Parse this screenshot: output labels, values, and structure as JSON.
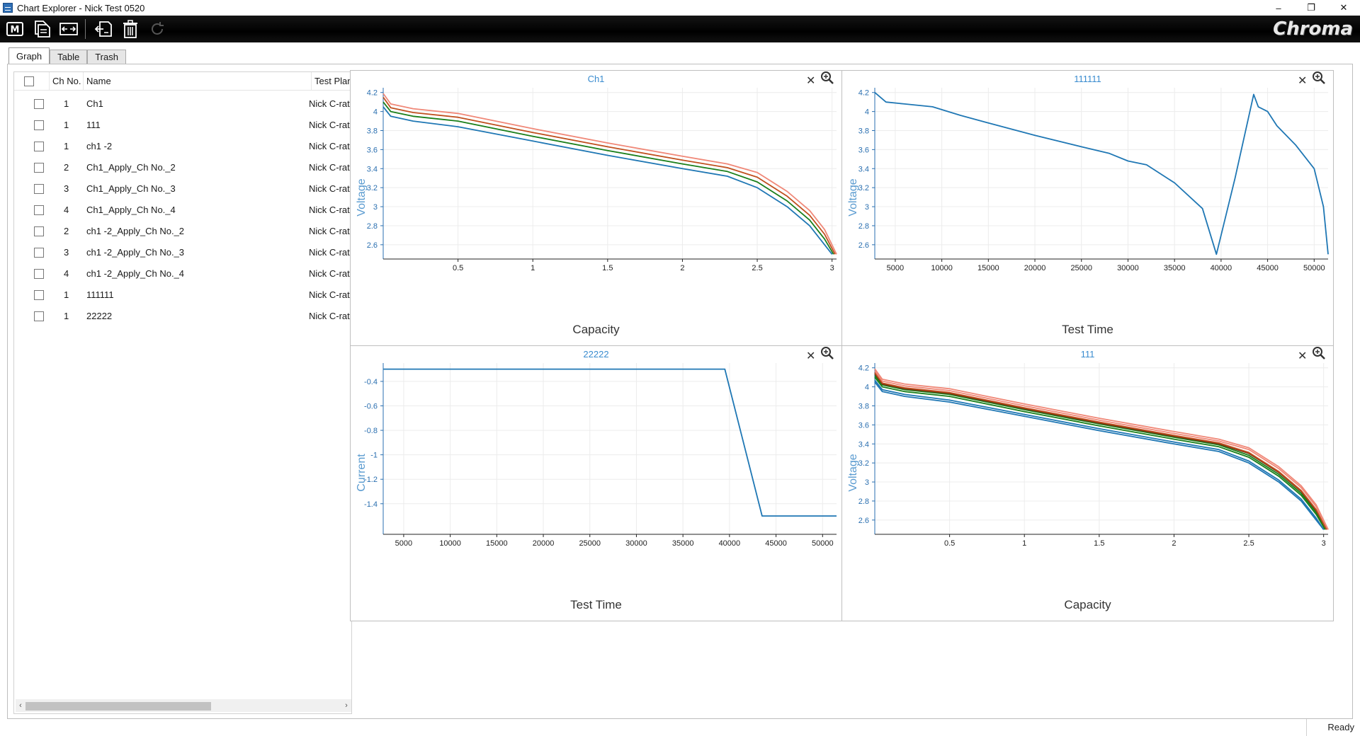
{
  "window": {
    "title": "Chart Explorer - Nick Test 0520",
    "min_glyph": "–",
    "max_glyph": "❐",
    "close_glyph": "✕"
  },
  "toolbar": {
    "buttons": [
      {
        "icon": "m-mode-icon"
      },
      {
        "icon": "copy-document-icon"
      },
      {
        "icon": "fit-view-icon"
      },
      {
        "icon": "export-icon"
      },
      {
        "icon": "trash-icon"
      },
      {
        "icon": "refresh-icon"
      }
    ],
    "brand": "Chroma"
  },
  "tabs": [
    {
      "label": "Graph",
      "active": true
    },
    {
      "label": "Table",
      "active": false
    },
    {
      "label": "Trash",
      "active": false
    }
  ],
  "list": {
    "headers": {
      "ch_no": "Ch No.",
      "name": "Name",
      "test_plan": "Test Plan"
    },
    "rows": [
      {
        "ch": "1",
        "name": "Ch1",
        "plan": "Nick C-rate"
      },
      {
        "ch": "1",
        "name": "111",
        "plan": "Nick C-rate"
      },
      {
        "ch": "1",
        "name": "ch1 -2",
        "plan": "Nick C-rate"
      },
      {
        "ch": "2",
        "name": "Ch1_Apply_Ch No._2",
        "plan": "Nick C-rate"
      },
      {
        "ch": "3",
        "name": "Ch1_Apply_Ch No._3",
        "plan": "Nick C-rate"
      },
      {
        "ch": "4",
        "name": "Ch1_Apply_Ch No._4",
        "plan": "Nick C-rate"
      },
      {
        "ch": "2",
        "name": "ch1 -2_Apply_Ch No._2",
        "plan": "Nick C-rate"
      },
      {
        "ch": "3",
        "name": "ch1 -2_Apply_Ch No._3",
        "plan": "Nick C-rate"
      },
      {
        "ch": "4",
        "name": "ch1 -2_Apply_Ch No._4",
        "plan": "Nick C-rate"
      },
      {
        "ch": "1",
        "name": "111111",
        "plan": "Nick C-rate"
      },
      {
        "ch": "1",
        "name": "22222",
        "plan": "Nick C-rate"
      }
    ]
  },
  "colors": {
    "accent": "#3a8ccf",
    "blue": "#1f77b4",
    "green": "#1a7f1a",
    "dark_orange": "#c0501f",
    "salmon": "#f08878"
  },
  "status": {
    "text": "Ready"
  },
  "chart_data": [
    {
      "type": "line",
      "title": "Ch1",
      "xlabel": "Capacity",
      "ylabel": "Voltage",
      "xlim": [
        0,
        3.03
      ],
      "ylim": [
        2.45,
        4.25
      ],
      "xticks": [
        "0.5",
        "1",
        "1.5",
        "2",
        "2.5",
        "3"
      ],
      "xtick_values": [
        0.5,
        1,
        1.5,
        2,
        2.5,
        3
      ],
      "yticks": [
        "4.2",
        "4",
        "3.8",
        "3.6",
        "3.4",
        "3.2",
        "3",
        "2.8",
        "2.6"
      ],
      "ytick_values": [
        4.2,
        4.0,
        3.8,
        3.6,
        3.4,
        3.2,
        3.0,
        2.8,
        2.6
      ],
      "series": [
        {
          "color": "#1f77b4",
          "points": [
            [
              0,
              4.05
            ],
            [
              0.05,
              3.95
            ],
            [
              0.2,
              3.9
            ],
            [
              0.5,
              3.84
            ],
            [
              1.0,
              3.69
            ],
            [
              1.5,
              3.54
            ],
            [
              2.0,
              3.4
            ],
            [
              2.3,
              3.32
            ],
            [
              2.5,
              3.2
            ],
            [
              2.7,
              3.0
            ],
            [
              2.85,
              2.8
            ],
            [
              2.95,
              2.6
            ],
            [
              3.0,
              2.5
            ]
          ]
        },
        {
          "color": "#1a7f1a",
          "points": [
            [
              0,
              4.1
            ],
            [
              0.05,
              4.0
            ],
            [
              0.2,
              3.95
            ],
            [
              0.5,
              3.9
            ],
            [
              1.0,
              3.74
            ],
            [
              1.5,
              3.59
            ],
            [
              2.0,
              3.45
            ],
            [
              2.3,
              3.37
            ],
            [
              2.5,
              3.26
            ],
            [
              2.7,
              3.06
            ],
            [
              2.85,
              2.86
            ],
            [
              2.95,
              2.66
            ],
            [
              3.01,
              2.5
            ]
          ]
        },
        {
          "color": "#c0501f",
          "points": [
            [
              0,
              4.15
            ],
            [
              0.05,
              4.04
            ],
            [
              0.2,
              3.99
            ],
            [
              0.5,
              3.94
            ],
            [
              1.0,
              3.78
            ],
            [
              1.5,
              3.63
            ],
            [
              2.0,
              3.49
            ],
            [
              2.3,
              3.41
            ],
            [
              2.5,
              3.31
            ],
            [
              2.7,
              3.11
            ],
            [
              2.85,
              2.91
            ],
            [
              2.95,
              2.71
            ],
            [
              3.02,
              2.5
            ]
          ]
        },
        {
          "color": "#f08878",
          "points": [
            [
              0,
              4.19
            ],
            [
              0.05,
              4.08
            ],
            [
              0.2,
              4.03
            ],
            [
              0.5,
              3.98
            ],
            [
              1.0,
              3.82
            ],
            [
              1.5,
              3.67
            ],
            [
              2.0,
              3.53
            ],
            [
              2.3,
              3.45
            ],
            [
              2.5,
              3.36
            ],
            [
              2.7,
              3.16
            ],
            [
              2.85,
              2.96
            ],
            [
              2.95,
              2.76
            ],
            [
              3.03,
              2.5
            ]
          ]
        }
      ]
    },
    {
      "type": "line",
      "title": "111111",
      "xlabel": "Test Time",
      "ylabel": "Voltage",
      "xlim": [
        2800,
        51500
      ],
      "ylim": [
        2.45,
        4.25
      ],
      "xticks": [
        "5000",
        "10000",
        "15000",
        "20000",
        "25000",
        "30000",
        "35000",
        "40000",
        "45000",
        "50000"
      ],
      "xtick_values": [
        5000,
        10000,
        15000,
        20000,
        25000,
        30000,
        35000,
        40000,
        45000,
        50000
      ],
      "yticks": [
        "4.2",
        "4",
        "3.8",
        "3.6",
        "3.4",
        "3.2",
        "3",
        "2.8",
        "2.6"
      ],
      "ytick_values": [
        4.2,
        4.0,
        3.8,
        3.6,
        3.4,
        3.2,
        3.0,
        2.8,
        2.6
      ],
      "series": [
        {
          "color": "#1f77b4",
          "points": [
            [
              2800,
              4.2
            ],
            [
              4000,
              4.1
            ],
            [
              6000,
              4.08
            ],
            [
              9000,
              4.05
            ],
            [
              12000,
              3.96
            ],
            [
              15000,
              3.88
            ],
            [
              20000,
              3.75
            ],
            [
              25000,
              3.63
            ],
            [
              28000,
              3.56
            ],
            [
              30000,
              3.48
            ],
            [
              32000,
              3.44
            ],
            [
              35000,
              3.25
            ],
            [
              38000,
              2.98
            ],
            [
              39500,
              2.5
            ],
            [
              41500,
              3.3
            ],
            [
              43500,
              4.18
            ],
            [
              44000,
              4.05
            ],
            [
              45000,
              4.0
            ],
            [
              46000,
              3.85
            ],
            [
              48000,
              3.65
            ],
            [
              50000,
              3.4
            ],
            [
              51000,
              3.0
            ],
            [
              51500,
              2.5
            ]
          ]
        }
      ]
    },
    {
      "type": "line",
      "title": "22222",
      "xlabel": "Test Time",
      "ylabel": "Current",
      "xlim": [
        2800,
        51500
      ],
      "ylim": [
        -1.65,
        -0.25
      ],
      "xticks": [
        "5000",
        "10000",
        "15000",
        "20000",
        "25000",
        "30000",
        "35000",
        "40000",
        "45000",
        "50000"
      ],
      "xtick_values": [
        5000,
        10000,
        15000,
        20000,
        25000,
        30000,
        35000,
        40000,
        45000,
        50000
      ],
      "yticks": [
        "-0.4",
        "-0.6",
        "-0.8",
        "-1",
        "-1.2",
        "-1.4"
      ],
      "ytick_values": [
        -0.4,
        -0.6,
        -0.8,
        -1.0,
        -1.2,
        -1.4
      ],
      "series": [
        {
          "color": "#1f77b4",
          "points": [
            [
              2800,
              -0.3
            ],
            [
              39500,
              -0.3
            ],
            [
              43500,
              -1.5
            ],
            [
              51500,
              -1.5
            ]
          ]
        }
      ]
    },
    {
      "type": "line",
      "title": "111",
      "xlabel": "Capacity",
      "ylabel": "Voltage",
      "xlim": [
        0,
        3.03
      ],
      "ylim": [
        2.45,
        4.25
      ],
      "xticks": [
        "0.5",
        "1",
        "1.5",
        "2",
        "2.5",
        "3"
      ],
      "xtick_values": [
        0.5,
        1,
        1.5,
        2,
        2.5,
        3
      ],
      "yticks": [
        "4.2",
        "4",
        "3.8",
        "3.6",
        "3.4",
        "3.2",
        "3",
        "2.8",
        "2.6"
      ],
      "ytick_values": [
        4.2,
        4.0,
        3.8,
        3.6,
        3.4,
        3.2,
        3.0,
        2.8,
        2.6
      ],
      "series": [
        {
          "color": "#1f77b4",
          "points": [
            [
              0,
              4.05
            ],
            [
              0.05,
              3.95
            ],
            [
              0.2,
              3.9
            ],
            [
              0.5,
              3.84
            ],
            [
              1.0,
              3.69
            ],
            [
              1.5,
              3.54
            ],
            [
              2.0,
              3.4
            ],
            [
              2.3,
              3.32
            ],
            [
              2.5,
              3.2
            ],
            [
              2.7,
              3.0
            ],
            [
              2.85,
              2.8
            ],
            [
              2.95,
              2.6
            ],
            [
              3.0,
              2.5
            ]
          ]
        },
        {
          "color": "#1f77b4",
          "points": [
            [
              0,
              4.07
            ],
            [
              0.05,
              3.97
            ],
            [
              0.2,
              3.92
            ],
            [
              0.5,
              3.86
            ],
            [
              1.0,
              3.71
            ],
            [
              1.5,
              3.56
            ],
            [
              2.0,
              3.42
            ],
            [
              2.3,
              3.34
            ],
            [
              2.5,
              3.22
            ],
            [
              2.7,
              3.02
            ],
            [
              2.85,
              2.82
            ],
            [
              2.95,
              2.62
            ],
            [
              3.0,
              2.5
            ]
          ]
        },
        {
          "color": "#1a7f1a",
          "points": [
            [
              0,
              4.1
            ],
            [
              0.05,
              4.0
            ],
            [
              0.2,
              3.95
            ],
            [
              0.5,
              3.9
            ],
            [
              1.0,
              3.74
            ],
            [
              1.5,
              3.59
            ],
            [
              2.0,
              3.45
            ],
            [
              2.3,
              3.37
            ],
            [
              2.5,
              3.26
            ],
            [
              2.7,
              3.06
            ],
            [
              2.85,
              2.86
            ],
            [
              2.95,
              2.66
            ],
            [
              3.01,
              2.5
            ]
          ]
        },
        {
          "color": "#1a7f1a",
          "points": [
            [
              0,
              4.12
            ],
            [
              0.05,
              4.02
            ],
            [
              0.2,
              3.97
            ],
            [
              0.5,
              3.92
            ],
            [
              1.0,
              3.76
            ],
            [
              1.5,
              3.61
            ],
            [
              2.0,
              3.47
            ],
            [
              2.3,
              3.39
            ],
            [
              2.5,
              3.28
            ],
            [
              2.7,
              3.08
            ],
            [
              2.85,
              2.88
            ],
            [
              2.95,
              2.68
            ],
            [
              3.01,
              2.5
            ]
          ]
        },
        {
          "color": "#7a3010",
          "points": [
            [
              0,
              4.14
            ],
            [
              0.05,
              4.03
            ],
            [
              0.2,
              3.98
            ],
            [
              0.5,
              3.93
            ],
            [
              1.0,
              3.77
            ],
            [
              1.5,
              3.62
            ],
            [
              2.0,
              3.48
            ],
            [
              2.3,
              3.4
            ],
            [
              2.5,
              3.3
            ],
            [
              2.7,
              3.1
            ],
            [
              2.85,
              2.9
            ],
            [
              2.95,
              2.7
            ],
            [
              3.02,
              2.5
            ]
          ]
        },
        {
          "color": "#c0501f",
          "points": [
            [
              0,
              4.15
            ],
            [
              0.05,
              4.04
            ],
            [
              0.2,
              3.99
            ],
            [
              0.5,
              3.94
            ],
            [
              1.0,
              3.78
            ],
            [
              1.5,
              3.63
            ],
            [
              2.0,
              3.49
            ],
            [
              2.3,
              3.41
            ],
            [
              2.5,
              3.31
            ],
            [
              2.7,
              3.11
            ],
            [
              2.85,
              2.91
            ],
            [
              2.95,
              2.71
            ],
            [
              3.02,
              2.5
            ]
          ]
        },
        {
          "color": "#f08878",
          "points": [
            [
              0,
              4.17
            ],
            [
              0.05,
              4.06
            ],
            [
              0.2,
              4.01
            ],
            [
              0.5,
              3.96
            ],
            [
              1.0,
              3.8
            ],
            [
              1.5,
              3.65
            ],
            [
              2.0,
              3.51
            ],
            [
              2.3,
              3.43
            ],
            [
              2.5,
              3.34
            ],
            [
              2.7,
              3.14
            ],
            [
              2.85,
              2.94
            ],
            [
              2.95,
              2.74
            ],
            [
              3.03,
              2.5
            ]
          ]
        },
        {
          "color": "#f08878",
          "points": [
            [
              0,
              4.19
            ],
            [
              0.05,
              4.08
            ],
            [
              0.2,
              4.03
            ],
            [
              0.5,
              3.98
            ],
            [
              1.0,
              3.82
            ],
            [
              1.5,
              3.67
            ],
            [
              2.0,
              3.53
            ],
            [
              2.3,
              3.45
            ],
            [
              2.5,
              3.36
            ],
            [
              2.7,
              3.16
            ],
            [
              2.85,
              2.96
            ],
            [
              2.95,
              2.76
            ],
            [
              3.03,
              2.5
            ]
          ]
        }
      ]
    }
  ]
}
